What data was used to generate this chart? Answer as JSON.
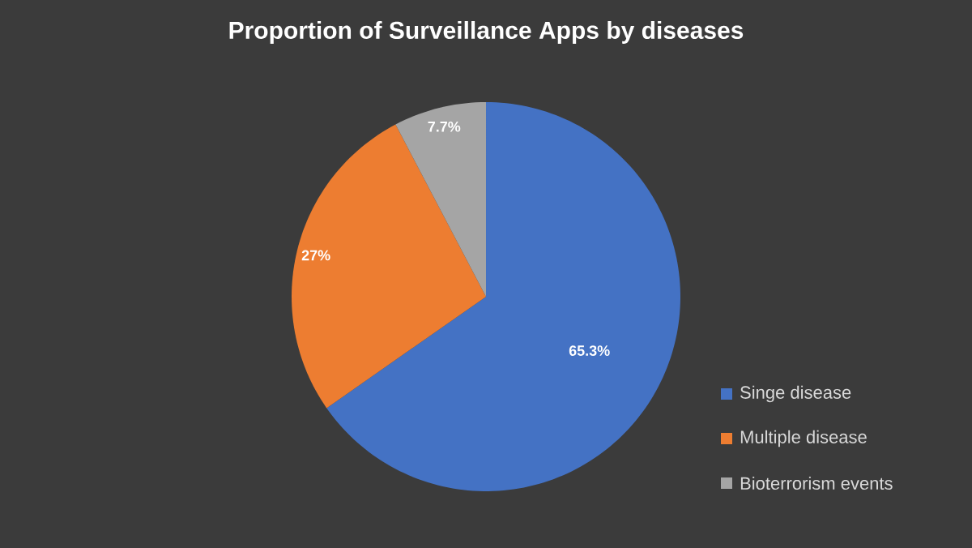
{
  "chart_data": {
    "type": "pie",
    "title": "Proportion of Surveillance Apps by diseases",
    "categories": [
      "Singe disease",
      "Multiple disease",
      "Bioterrorism events"
    ],
    "values": [
      65.3,
      27,
      7.7
    ],
    "colors": [
      "#4472c4",
      "#ed7d31",
      "#a5a5a5"
    ],
    "value_labels": [
      "65.3%",
      "27%",
      "7.7%"
    ],
    "legend": "right"
  }
}
